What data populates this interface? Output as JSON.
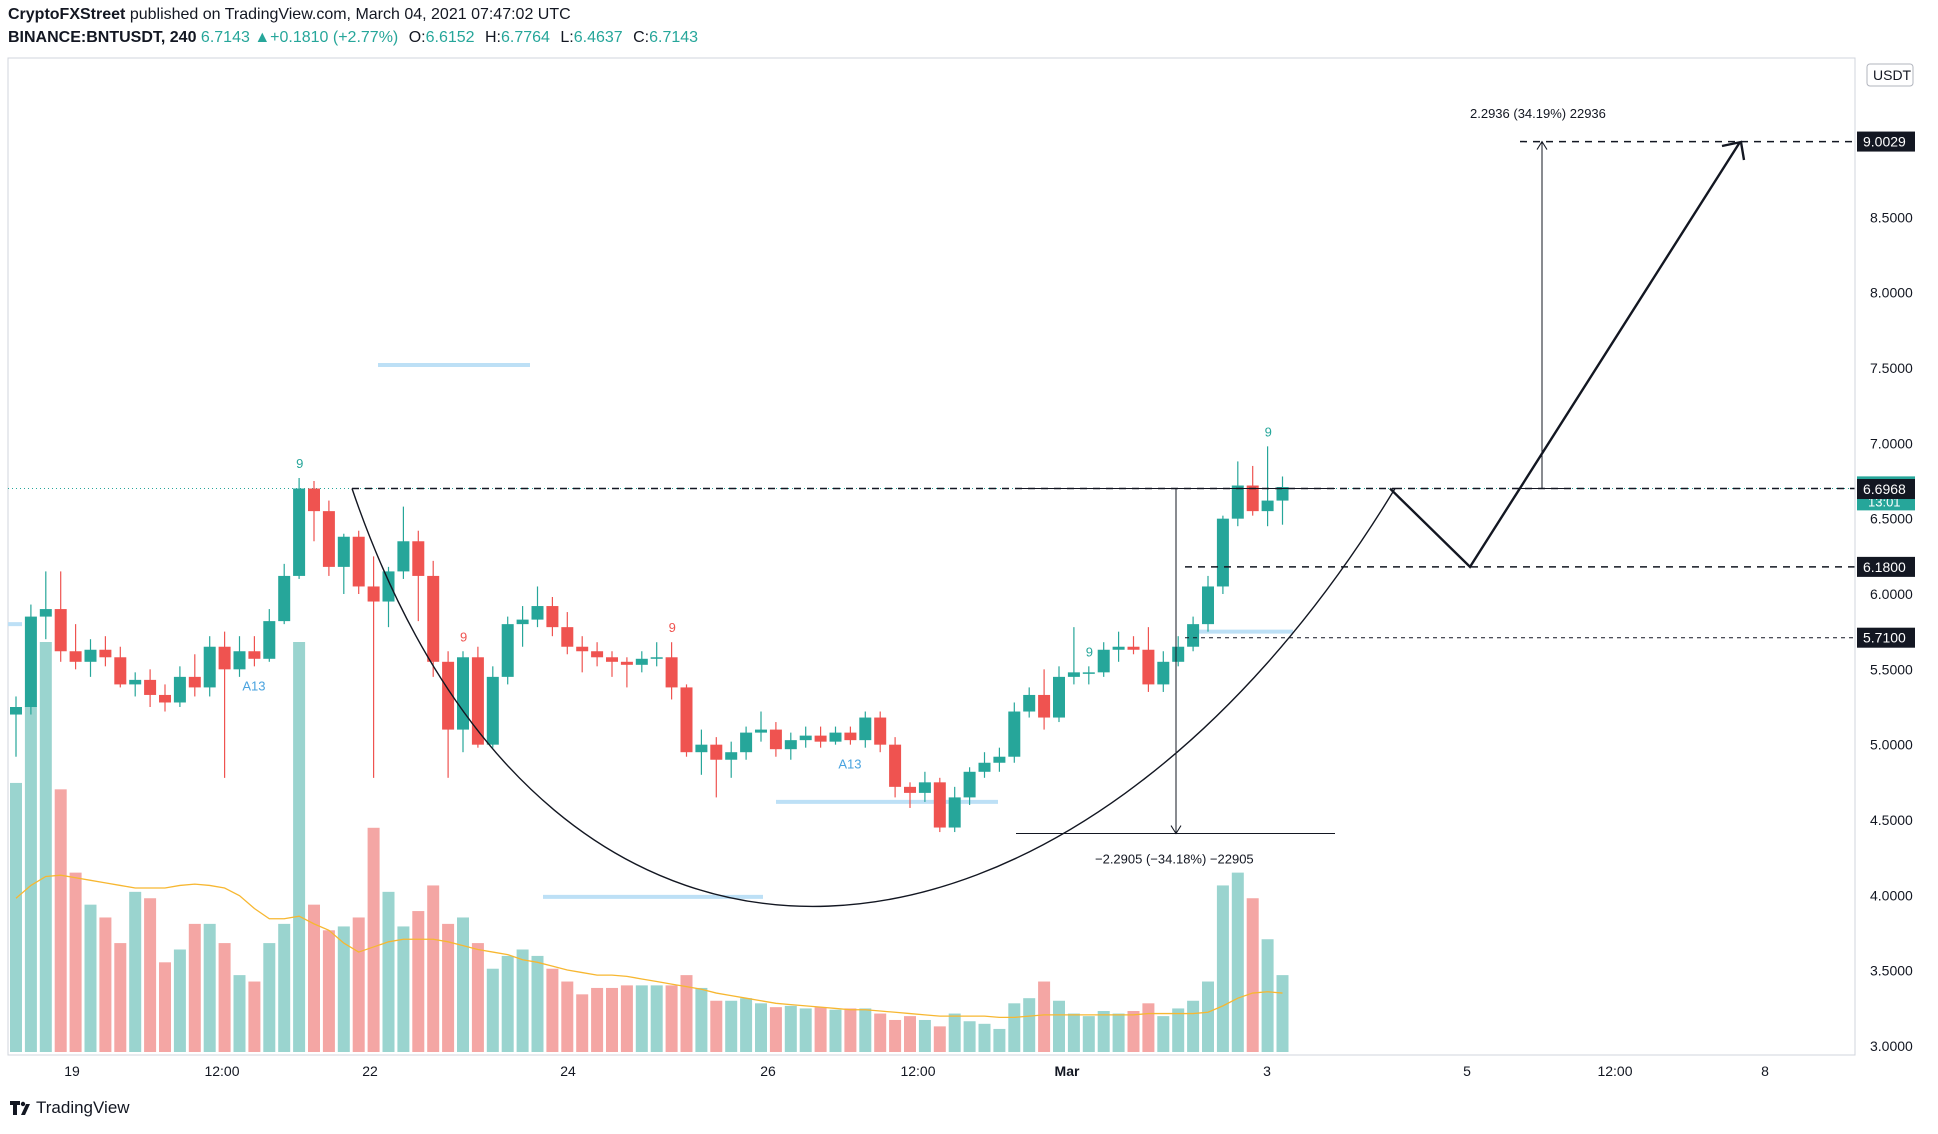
{
  "header": {
    "publisher": "CryptoFXStreet",
    "published_text": "published on TradingView.com, March 04, 2021 07:47:02 UTC",
    "symbol": "BINANCE:BNTUSDT, 240",
    "last": "6.7143",
    "change": "+0.1810 (+2.77%)",
    "o_label": "O:",
    "o_value": "6.6152",
    "h_label": "H:",
    "h_value": "6.7764",
    "l_label": "L:",
    "l_value": "6.4637",
    "c_label": "C:",
    "c_value": "6.7143"
  },
  "footer": {
    "brand": "TradingView"
  },
  "colors": {
    "up": "#26a69a",
    "down": "#ef5350",
    "up_volume": "#9ad4cf",
    "down_volume": "#f4a6a4",
    "volume_ma": "#f7b731",
    "support_zone": "#bde0f6"
  },
  "chart_data": {
    "type": "candlestick",
    "currency_label": "USDT",
    "y_ticks": [
      "3.0000",
      "3.5000",
      "4.0000",
      "4.5000",
      "5.0000",
      "5.5000",
      "6.0000",
      "6.5000",
      "7.0000",
      "7.5000",
      "8.0000",
      "8.5000",
      "9.0000"
    ],
    "ylim": [
      2.95,
      9.25
    ],
    "x_ticks": [
      "19",
      "12:00",
      "22",
      "24",
      "26",
      "12:00",
      "Mar",
      "3",
      "5",
      "12:00",
      "8"
    ],
    "price_labels": [
      {
        "value": 9.0029,
        "text": "9.0029",
        "style": "dark"
      },
      {
        "value": 6.7143,
        "text": "6.7143",
        "style": "green",
        "sub": "13:01"
      },
      {
        "value": 6.6968,
        "text": "6.6968",
        "style": "dark"
      },
      {
        "value": 6.18,
        "text": "6.1800",
        "style": "dark"
      },
      {
        "value": 5.71,
        "text": "5.7100",
        "style": "dark"
      }
    ],
    "candles": [
      {
        "o": 5.2,
        "h": 5.32,
        "l": 4.92,
        "c": 5.25
      },
      {
        "o": 5.25,
        "h": 5.93,
        "l": 5.2,
        "c": 5.85
      },
      {
        "o": 5.85,
        "h": 6.15,
        "l": 5.7,
        "c": 5.9
      },
      {
        "o": 5.9,
        "h": 6.15,
        "l": 5.55,
        "c": 5.62
      },
      {
        "o": 5.62,
        "h": 5.8,
        "l": 5.5,
        "c": 5.55
      },
      {
        "o": 5.55,
        "h": 5.7,
        "l": 5.45,
        "c": 5.63
      },
      {
        "o": 5.63,
        "h": 5.72,
        "l": 5.52,
        "c": 5.58
      },
      {
        "o": 5.58,
        "h": 5.65,
        "l": 5.38,
        "c": 5.4
      },
      {
        "o": 5.4,
        "h": 5.48,
        "l": 5.32,
        "c": 5.43
      },
      {
        "o": 5.43,
        "h": 5.5,
        "l": 5.25,
        "c": 5.33
      },
      {
        "o": 5.33,
        "h": 5.4,
        "l": 5.22,
        "c": 5.28
      },
      {
        "o": 5.28,
        "h": 5.52,
        "l": 5.25,
        "c": 5.45
      },
      {
        "o": 5.45,
        "h": 5.6,
        "l": 5.32,
        "c": 5.38
      },
      {
        "o": 5.38,
        "h": 5.72,
        "l": 5.32,
        "c": 5.65
      },
      {
        "o": 5.65,
        "h": 5.75,
        "l": 4.78,
        "c": 5.5
      },
      {
        "o": 5.5,
        "h": 5.72,
        "l": 5.45,
        "c": 5.62
      },
      {
        "o": 5.62,
        "h": 5.72,
        "l": 5.52,
        "c": 5.57
      },
      {
        "o": 5.57,
        "h": 5.9,
        "l": 5.55,
        "c": 5.82
      },
      {
        "o": 5.82,
        "h": 6.2,
        "l": 5.8,
        "c": 6.12
      },
      {
        "o": 6.12,
        "h": 6.77,
        "l": 6.1,
        "c": 6.7
      },
      {
        "o": 6.7,
        "h": 6.75,
        "l": 6.35,
        "c": 6.55
      },
      {
        "o": 6.55,
        "h": 6.62,
        "l": 6.12,
        "c": 6.18
      },
      {
        "o": 6.18,
        "h": 6.4,
        "l": 6.0,
        "c": 6.38
      },
      {
        "o": 6.38,
        "h": 6.42,
        "l": 6.0,
        "c": 6.05
      },
      {
        "o": 6.05,
        "h": 6.25,
        "l": 4.78,
        "c": 5.95
      },
      {
        "o": 5.95,
        "h": 6.18,
        "l": 5.78,
        "c": 6.15
      },
      {
        "o": 6.15,
        "h": 6.58,
        "l": 6.1,
        "c": 6.35
      },
      {
        "o": 6.35,
        "h": 6.42,
        "l": 5.82,
        "c": 6.12
      },
      {
        "o": 6.12,
        "h": 6.22,
        "l": 5.45,
        "c": 5.55
      },
      {
        "o": 5.55,
        "h": 5.62,
        "l": 4.78,
        "c": 5.1
      },
      {
        "o": 5.1,
        "h": 5.62,
        "l": 4.95,
        "c": 5.58
      },
      {
        "o": 5.58,
        "h": 5.65,
        "l": 4.98,
        "c": 5.0
      },
      {
        "o": 5.0,
        "h": 5.52,
        "l": 4.98,
        "c": 5.45
      },
      {
        "o": 5.45,
        "h": 5.85,
        "l": 5.4,
        "c": 5.8
      },
      {
        "o": 5.8,
        "h": 5.92,
        "l": 5.65,
        "c": 5.83
      },
      {
        "o": 5.83,
        "h": 6.05,
        "l": 5.78,
        "c": 5.92
      },
      {
        "o": 5.92,
        "h": 5.98,
        "l": 5.72,
        "c": 5.78
      },
      {
        "o": 5.78,
        "h": 5.88,
        "l": 5.6,
        "c": 5.65
      },
      {
        "o": 5.65,
        "h": 5.72,
        "l": 5.48,
        "c": 5.62
      },
      {
        "o": 5.62,
        "h": 5.68,
        "l": 5.52,
        "c": 5.58
      },
      {
        "o": 5.58,
        "h": 5.62,
        "l": 5.45,
        "c": 5.55
      },
      {
        "o": 5.55,
        "h": 5.58,
        "l": 5.38,
        "c": 5.53
      },
      {
        "o": 5.53,
        "h": 5.62,
        "l": 5.48,
        "c": 5.57
      },
      {
        "o": 5.57,
        "h": 5.68,
        "l": 5.52,
        "c": 5.58
      },
      {
        "o": 5.58,
        "h": 5.68,
        "l": 5.3,
        "c": 5.38
      },
      {
        "o": 5.38,
        "h": 5.4,
        "l": 4.92,
        "c": 4.95
      },
      {
        "o": 4.95,
        "h": 5.1,
        "l": 4.8,
        "c": 5.0
      },
      {
        "o": 5.0,
        "h": 5.05,
        "l": 4.65,
        "c": 4.9
      },
      {
        "o": 4.9,
        "h": 5.02,
        "l": 4.78,
        "c": 4.95
      },
      {
        "o": 4.95,
        "h": 5.12,
        "l": 4.9,
        "c": 5.08
      },
      {
        "o": 5.08,
        "h": 5.22,
        "l": 5.02,
        "c": 5.1
      },
      {
        "o": 5.1,
        "h": 5.15,
        "l": 4.92,
        "c": 4.97
      },
      {
        "o": 4.97,
        "h": 5.08,
        "l": 4.9,
        "c": 5.03
      },
      {
        "o": 5.03,
        "h": 5.12,
        "l": 4.98,
        "c": 5.06
      },
      {
        "o": 5.06,
        "h": 5.12,
        "l": 4.98,
        "c": 5.02
      },
      {
        "o": 5.02,
        "h": 5.12,
        "l": 5.0,
        "c": 5.08
      },
      {
        "o": 5.08,
        "h": 5.12,
        "l": 5.0,
        "c": 5.03
      },
      {
        "o": 5.03,
        "h": 5.22,
        "l": 4.98,
        "c": 5.18
      },
      {
        "o": 5.18,
        "h": 5.22,
        "l": 4.95,
        "c": 5.0
      },
      {
        "o": 5.0,
        "h": 5.05,
        "l": 4.65,
        "c": 4.72
      },
      {
        "o": 4.72,
        "h": 4.75,
        "l": 4.58,
        "c": 4.68
      },
      {
        "o": 4.68,
        "h": 4.82,
        "l": 4.62,
        "c": 4.75
      },
      {
        "o": 4.75,
        "h": 4.78,
        "l": 4.42,
        "c": 4.45
      },
      {
        "o": 4.45,
        "h": 4.72,
        "l": 4.42,
        "c": 4.65
      },
      {
        "o": 4.65,
        "h": 4.85,
        "l": 4.6,
        "c": 4.82
      },
      {
        "o": 4.82,
        "h": 4.95,
        "l": 4.78,
        "c": 4.88
      },
      {
        "o": 4.88,
        "h": 4.98,
        "l": 4.82,
        "c": 4.92
      },
      {
        "o": 4.92,
        "h": 5.28,
        "l": 4.88,
        "c": 5.22
      },
      {
        "o": 5.22,
        "h": 5.38,
        "l": 5.18,
        "c": 5.33
      },
      {
        "o": 5.33,
        "h": 5.5,
        "l": 5.1,
        "c": 5.18
      },
      {
        "o": 5.18,
        "h": 5.52,
        "l": 5.15,
        "c": 5.45
      },
      {
        "o": 5.45,
        "h": 5.78,
        "l": 5.4,
        "c": 5.48
      },
      {
        "o": 5.48,
        "h": 5.52,
        "l": 5.4,
        "c": 5.48
      },
      {
        "o": 5.48,
        "h": 5.68,
        "l": 5.45,
        "c": 5.63
      },
      {
        "o": 5.63,
        "h": 5.75,
        "l": 5.55,
        "c": 5.65
      },
      {
        "o": 5.65,
        "h": 5.72,
        "l": 5.6,
        "c": 5.63
      },
      {
        "o": 5.63,
        "h": 5.78,
        "l": 5.35,
        "c": 5.4
      },
      {
        "o": 5.4,
        "h": 5.62,
        "l": 5.35,
        "c": 5.55
      },
      {
        "o": 5.55,
        "h": 5.72,
        "l": 5.52,
        "c": 5.65
      },
      {
        "o": 5.65,
        "h": 5.85,
        "l": 5.62,
        "c": 5.8
      },
      {
        "o": 5.8,
        "h": 6.12,
        "l": 5.75,
        "c": 6.05
      },
      {
        "o": 6.05,
        "h": 6.52,
        "l": 6.0,
        "c": 6.5
      },
      {
        "o": 6.5,
        "h": 6.88,
        "l": 6.45,
        "c": 6.72
      },
      {
        "o": 6.72,
        "h": 6.85,
        "l": 6.52,
        "c": 6.55
      },
      {
        "o": 6.55,
        "h": 6.98,
        "l": 6.45,
        "c": 6.62
      },
      {
        "o": 6.62,
        "h": 6.78,
        "l": 6.46,
        "c": 6.71
      }
    ],
    "volume": [
      210,
      270,
      320,
      205,
      140,
      115,
      105,
      85,
      125,
      120,
      70,
      80,
      100,
      100,
      85,
      60,
      55,
      85,
      100,
      320,
      115,
      95,
      98,
      105,
      175,
      125,
      98,
      110,
      130,
      100,
      105,
      85,
      65,
      75,
      80,
      75,
      65,
      55,
      45,
      50,
      50,
      52,
      52,
      52,
      52,
      60,
      50,
      40,
      40,
      42,
      38,
      35,
      36,
      34,
      35,
      33,
      34,
      34,
      30,
      25,
      28,
      25,
      20,
      30,
      24,
      22,
      18,
      38,
      42,
      55,
      40,
      30,
      28,
      32,
      30,
      32,
      38,
      28,
      34,
      40,
      55,
      130,
      140,
      120,
      88,
      60
    ],
    "volume_ma": [
      120,
      130,
      137,
      138,
      136,
      134,
      132,
      130,
      128,
      128,
      128,
      130,
      131,
      130,
      128,
      122,
      112,
      104,
      104,
      106,
      100,
      95,
      85,
      78,
      82,
      86,
      88,
      88,
      88,
      86,
      83,
      80,
      78,
      76,
      72,
      70,
      67,
      64,
      62,
      60,
      60,
      59,
      57,
      55,
      53,
      51,
      49,
      46,
      44,
      42,
      40,
      38,
      37,
      36,
      35,
      34,
      33,
      33,
      32,
      31,
      30,
      29,
      28,
      28,
      28,
      28,
      27,
      27,
      28,
      29,
      29,
      29,
      29,
      29,
      29,
      29,
      30,
      30,
      30,
      30,
      31,
      36,
      42,
      46,
      47,
      46
    ],
    "cup_curve": {
      "rim_left": 6.7,
      "bottom": 4.0,
      "rim_right": 6.7
    },
    "resistance": 6.7,
    "retest": 6.18,
    "breakout_line": 5.71,
    "target": 9.0029,
    "measure_down": {
      "from": 6.7,
      "to": 4.41,
      "text": "−2.2905 (−34.18%) −22905"
    },
    "measure_up": {
      "from": 6.7,
      "to": 9.0029,
      "text": "2.2936 (34.19%) 22936"
    },
    "support_zones": [
      7.52,
      4.62,
      3.99,
      5.75,
      5.8
    ],
    "markers": [
      {
        "bar": 19,
        "text": "9",
        "color": "#26a69a"
      },
      {
        "bar": 30,
        "text": "9",
        "color": "#ef5350"
      },
      {
        "bar": 44,
        "text": "9",
        "color": "#ef5350"
      },
      {
        "bar": 72,
        "text": "9",
        "color": "#26a69a"
      },
      {
        "bar": 84,
        "text": "9",
        "color": "#26a69a"
      },
      {
        "bar": 16,
        "text": "A13",
        "color": "#4aa3df"
      },
      {
        "bar": 56,
        "text": "A13",
        "color": "#4aa3df"
      }
    ]
  }
}
